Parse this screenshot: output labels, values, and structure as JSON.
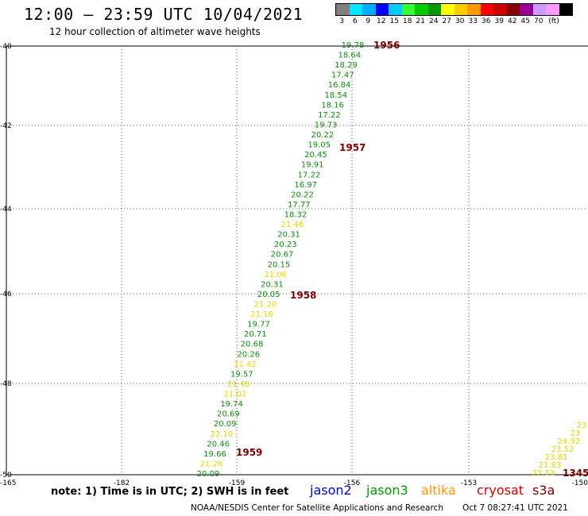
{
  "title": "12:00 – 23:59 UTC 10/04/2021",
  "subtitle": "12 hour collection of altimeter wave heights",
  "legend": {
    "colors": [
      "#808080",
      "#00e5ff",
      "#00b0ff",
      "#0000ff",
      "#00ccff",
      "#33ff33",
      "#00cc00",
      "#009900",
      "#ffff00",
      "#ffcc00",
      "#ff9900",
      "#ff0000",
      "#cc0000",
      "#880000",
      "#990099",
      "#cc99ff",
      "#ff99ff",
      "#000000"
    ],
    "labels": [
      "3",
      "6",
      "9",
      "12",
      "15",
      "18",
      "21",
      "24",
      "27",
      "30",
      "33",
      "36",
      "39",
      "42",
      "45",
      "70",
      "(ft)"
    ]
  },
  "axes": {
    "lat_labels": [
      "-40",
      "-42",
      "-44",
      "-46",
      "-48",
      "-50"
    ],
    "lon_labels": [
      "-165",
      "-182",
      "-159",
      "-156",
      "-153",
      "-150"
    ]
  },
  "track_main": {
    "values": [
      "19.78",
      "18.64",
      "18.29",
      "17.47",
      "16.84",
      "18.54",
      "18.16",
      "17.22",
      "19.73",
      "20.22",
      "19.05",
      "20.45",
      "19.91",
      "17.22",
      "16.97",
      "20.22",
      "17.77",
      "18.32",
      "21.46",
      "20.31",
      "20.23",
      "20.67",
      "20.15",
      "21.06",
      "20.31",
      "20.05",
      "21.20",
      "21.16",
      "19.77",
      "20.71",
      "20.68",
      "20.26",
      "21.42",
      "19.57",
      "21.48",
      "21.02",
      "19.74",
      "20.69",
      "20.09",
      "22.10",
      "20.46",
      "19.66",
      "21.26",
      "20.09"
    ],
    "colors": [
      "g",
      "g",
      "g",
      "g",
      "g",
      "g",
      "g",
      "g",
      "g",
      "g",
      "g",
      "g",
      "g",
      "g",
      "g",
      "g",
      "g",
      "g",
      "y",
      "g",
      "g",
      "g",
      "g",
      "y",
      "g",
      "g",
      "y",
      "y",
      "g",
      "g",
      "g",
      "g",
      "y",
      "g",
      "y",
      "y",
      "g",
      "g",
      "g",
      "y",
      "g",
      "g",
      "y",
      "g"
    ]
  },
  "track_east": {
    "values": [
      "23",
      "23",
      "24.92",
      "23.52",
      "23.81",
      "21.83",
      "22.53"
    ],
    "colors": [
      "y",
      "y",
      "y",
      "y",
      "y",
      "y",
      "y"
    ]
  },
  "pass_times": [
    "1956",
    "1957",
    "1958",
    "1959",
    "1345"
  ],
  "note": "note: 1) Time is in UTC; 2) SWH is in feet",
  "satellites": [
    {
      "name": "jason2",
      "color": "#0000cc"
    },
    {
      "name": "jason3",
      "color": "#009900"
    },
    {
      "name": "altika",
      "color": "#ff9900"
    },
    {
      "name": "cryosat",
      "color": "#cc0000"
    },
    {
      "name": "s3a",
      "color": "#7a0000"
    }
  ],
  "footer": "NOAA/NESDIS Center for Satellite Applications and Research",
  "footer_time": "Oct  7 08:27:41 UTC 2021"
}
